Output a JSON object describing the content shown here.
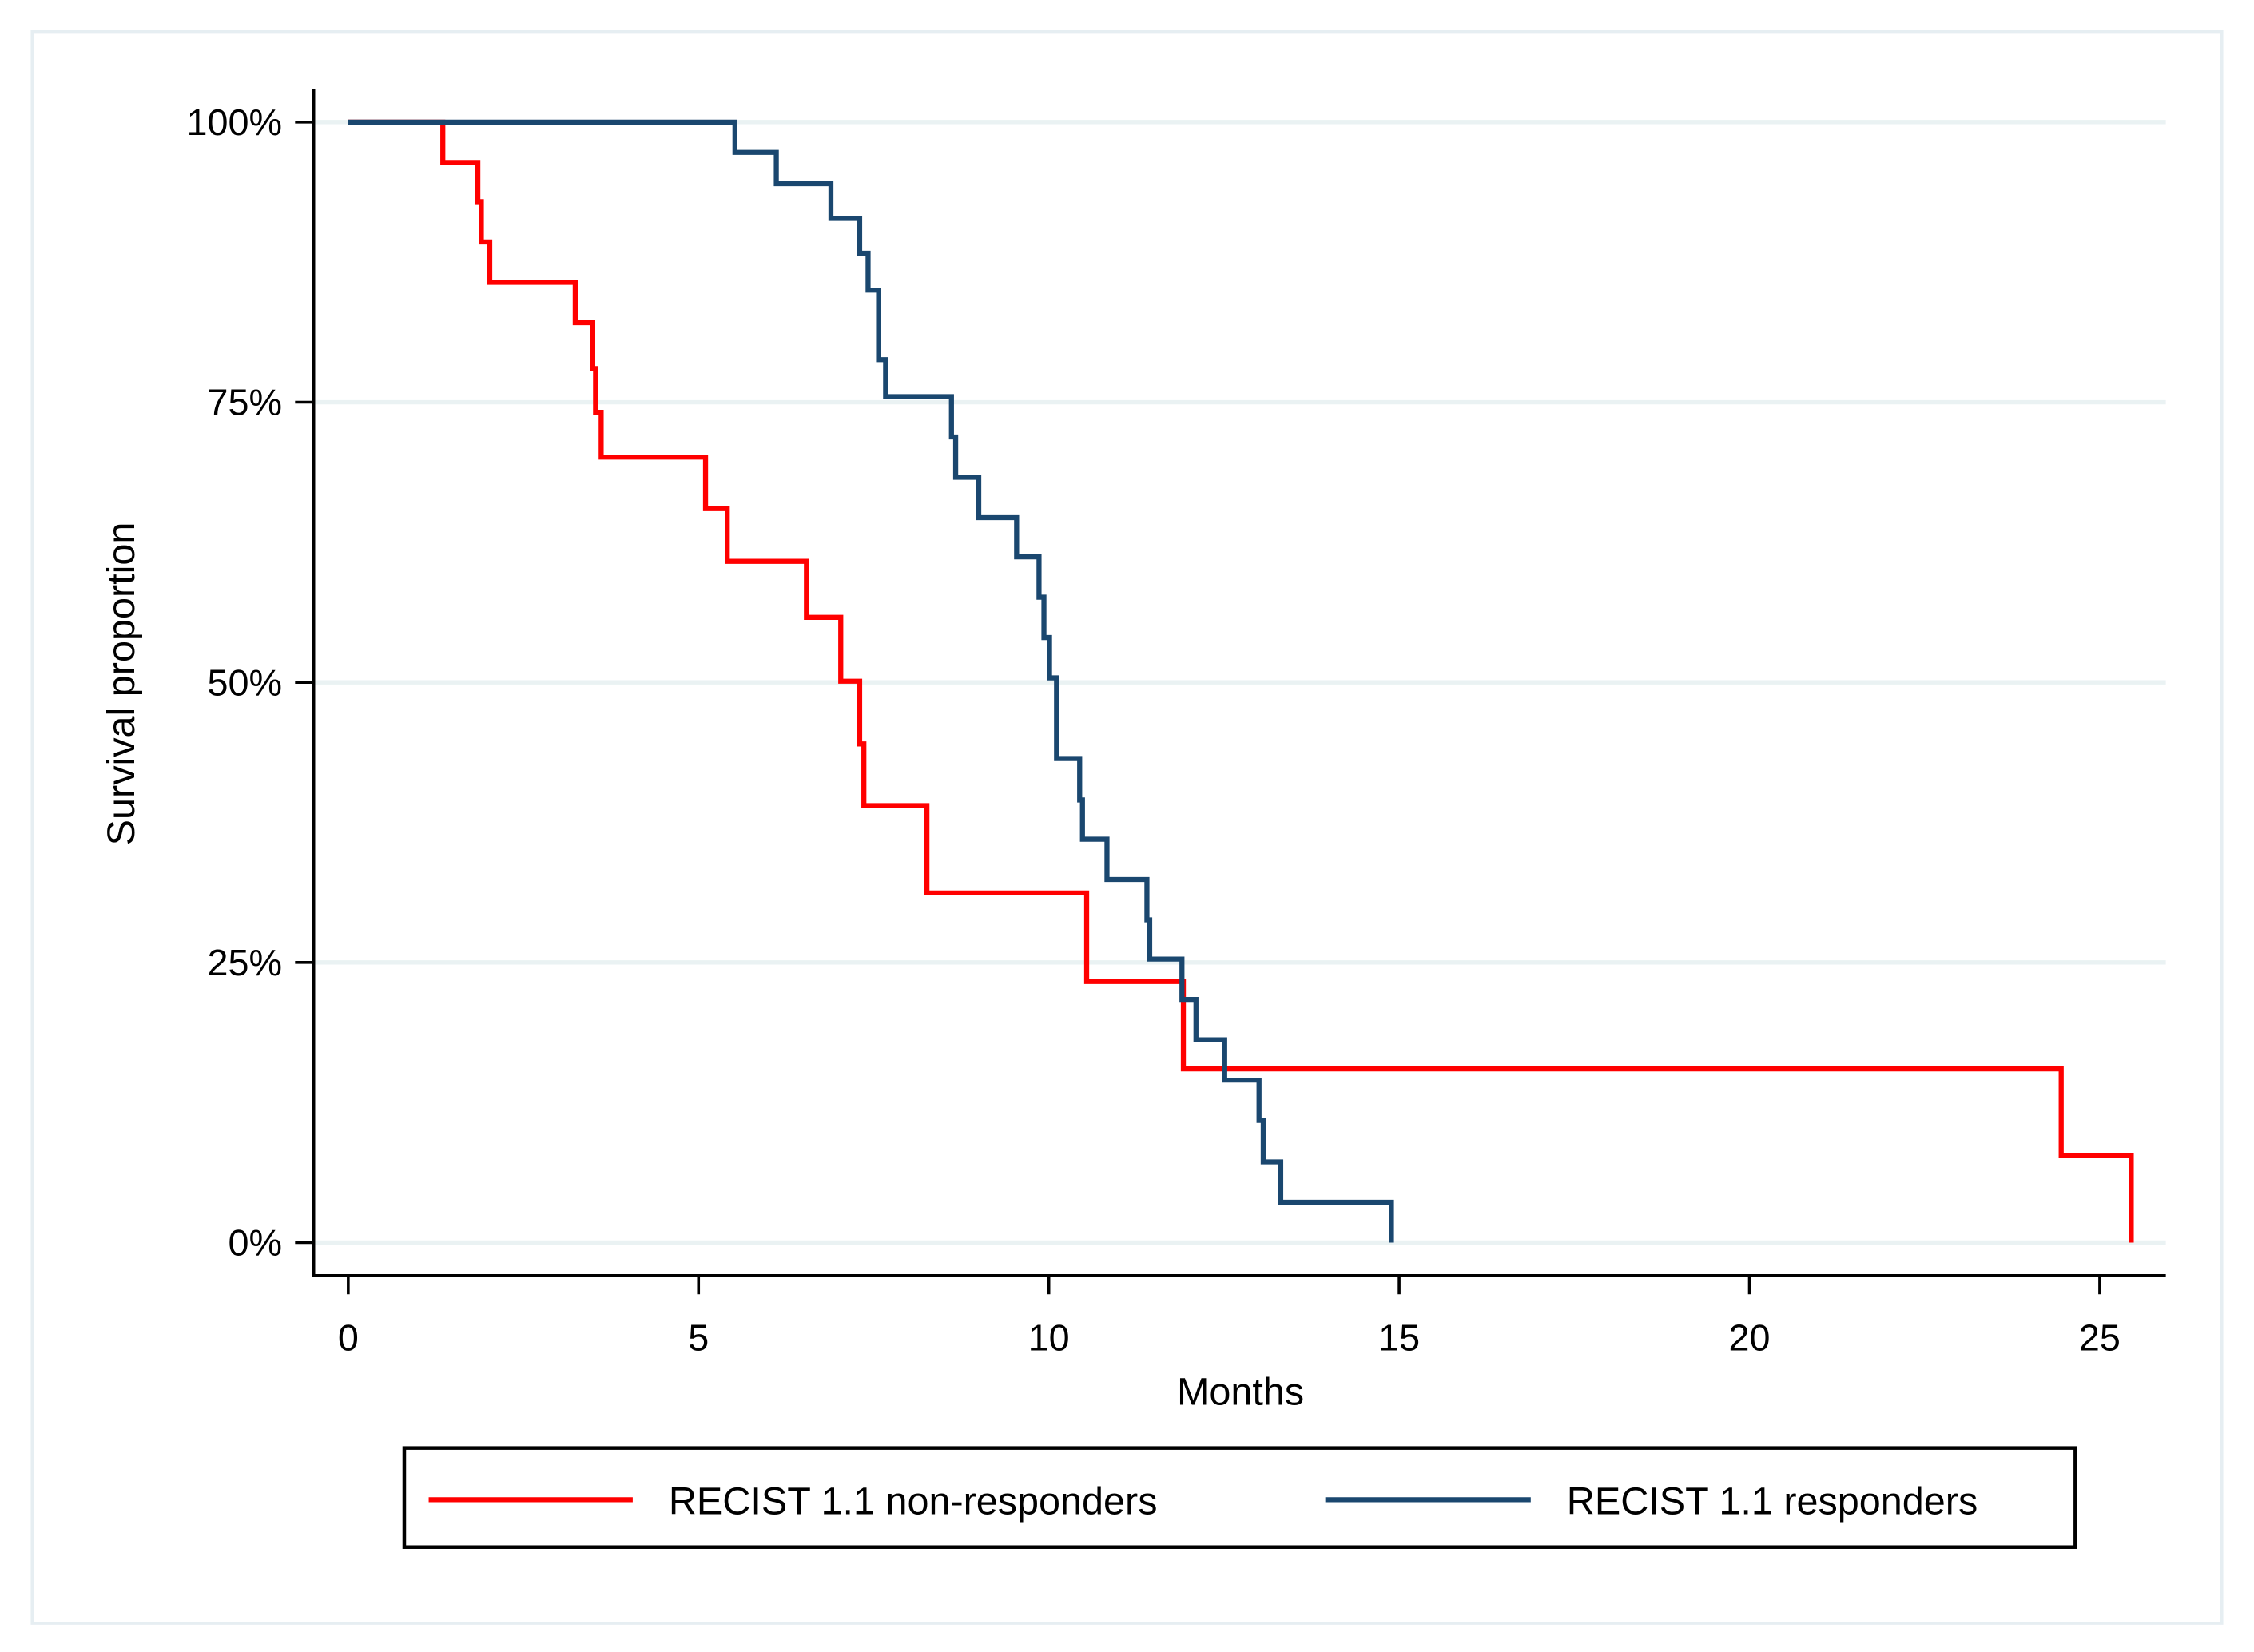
{
  "chart_data": {
    "type": "line",
    "subtype": "kaplan-meier step",
    "title": "",
    "xlabel": "Months",
    "ylabel": "Survival proportion",
    "xlim": [
      0,
      26
    ],
    "ylim": [
      0,
      1
    ],
    "xticks": [
      0,
      5,
      10,
      15,
      20,
      25
    ],
    "xtick_labels": [
      "0",
      "5",
      "10",
      "15",
      "20",
      "25"
    ],
    "yticks": [
      0,
      0.25,
      0.5,
      0.75,
      1
    ],
    "ytick_labels": [
      "0%",
      "25%",
      "50%",
      "75%",
      "100%"
    ],
    "grid": "horizontal",
    "legend_position": "bottom",
    "series": [
      {
        "name": "RECIST 1.1 non-responders",
        "color": "#ff0000",
        "steps": [
          [
            0,
            1.0
          ],
          [
            1.35,
            0.964
          ],
          [
            1.85,
            0.929
          ],
          [
            1.9,
            0.893
          ],
          [
            2.02,
            0.857
          ],
          [
            3.24,
            0.821
          ],
          [
            3.49,
            0.78
          ],
          [
            3.53,
            0.741
          ],
          [
            3.61,
            0.701
          ],
          [
            5.1,
            0.655
          ],
          [
            5.41,
            0.608
          ],
          [
            6.54,
            0.558
          ],
          [
            7.03,
            0.501
          ],
          [
            7.3,
            0.445
          ],
          [
            7.36,
            0.39
          ],
          [
            8.26,
            0.312
          ],
          [
            10.54,
            0.233
          ],
          [
            11.92,
            0.155
          ],
          [
            24.45,
            0.078
          ],
          [
            25.45,
            0.0
          ]
        ]
      },
      {
        "name": "RECIST 1.1 responders",
        "color": "#1a476f",
        "steps": [
          [
            0,
            1.0
          ],
          [
            5.52,
            0.973
          ],
          [
            6.11,
            0.945
          ],
          [
            6.89,
            0.914
          ],
          [
            7.3,
            0.883
          ],
          [
            7.42,
            0.85
          ],
          [
            7.57,
            0.788
          ],
          [
            7.67,
            0.755
          ],
          [
            8.61,
            0.719
          ],
          [
            8.67,
            0.683
          ],
          [
            9.0,
            0.647
          ],
          [
            9.54,
            0.612
          ],
          [
            9.86,
            0.576
          ],
          [
            9.93,
            0.54
          ],
          [
            10.01,
            0.504
          ],
          [
            10.11,
            0.432
          ],
          [
            10.44,
            0.395
          ],
          [
            10.48,
            0.36
          ],
          [
            10.83,
            0.324
          ],
          [
            11.4,
            0.288
          ],
          [
            11.44,
            0.253
          ],
          [
            11.9,
            0.217
          ],
          [
            12.1,
            0.181
          ],
          [
            12.51,
            0.145
          ],
          [
            13.0,
            0.109
          ],
          [
            13.06,
            0.072
          ],
          [
            13.31,
            0.036
          ],
          [
            14.89,
            0.0
          ]
        ]
      }
    ]
  }
}
